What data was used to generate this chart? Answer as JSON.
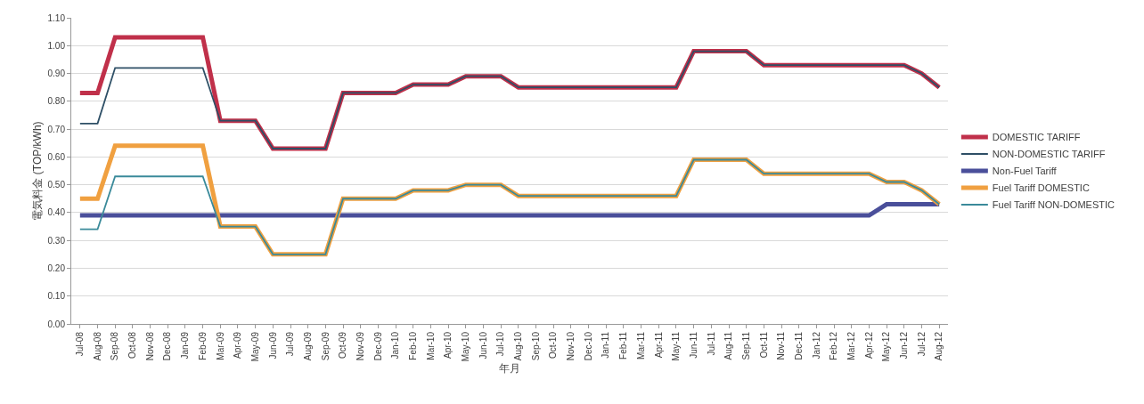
{
  "chart_data": {
    "type": "line",
    "xlabel": "年月",
    "ylabel": "電気料金 (TOP/kWh)",
    "categories": [
      "Jul-08",
      "Aug-08",
      "Sep-08",
      "Oct-08",
      "Nov-08",
      "Dec-08",
      "Jan-09",
      "Feb-09",
      "Mar-09",
      "Apr-09",
      "May-09",
      "Jun-09",
      "Jul-09",
      "Aug-09",
      "Sep-09",
      "Oct-09",
      "Nov-09",
      "Dec-09",
      "Jan-10",
      "Feb-10",
      "Mar-10",
      "Apr-10",
      "May-10",
      "Jun-10",
      "Jul-10",
      "Aug-10",
      "Sep-10",
      "Oct-10",
      "Nov-10",
      "Dec-10",
      "Jan-11",
      "Feb-11",
      "Mar-11",
      "Apr-11",
      "May-11",
      "Jun-11",
      "Jul-11",
      "Aug-11",
      "Sep-11",
      "Oct-11",
      "Nov-11",
      "Dec-11",
      "Jan-12",
      "Feb-12",
      "Mar-12",
      "Apr-12",
      "May-12",
      "Jun-12",
      "Jul-12",
      "Aug-12"
    ],
    "series": [
      {
        "name": "DOMESTIC TARIFF",
        "color": "#c0304a",
        "values": [
          0.83,
          0.83,
          1.03,
          1.03,
          1.03,
          1.03,
          1.03,
          1.03,
          0.73,
          0.73,
          0.73,
          0.63,
          0.63,
          0.63,
          0.63,
          0.83,
          0.83,
          0.83,
          0.83,
          0.86,
          0.86,
          0.86,
          0.89,
          0.89,
          0.89,
          0.85,
          0.85,
          0.85,
          0.85,
          0.85,
          0.85,
          0.85,
          0.85,
          0.85,
          0.85,
          0.98,
          0.98,
          0.98,
          0.98,
          0.93,
          0.93,
          0.93,
          0.93,
          0.93,
          0.93,
          0.93,
          0.93,
          0.93,
          0.9,
          0.85
        ]
      },
      {
        "name": "NON-DOMESTIC TARIFF",
        "color": "#2e4f66",
        "values": [
          0.72,
          0.72,
          0.92,
          0.92,
          0.92,
          0.92,
          0.92,
          0.92,
          0.73,
          0.73,
          0.73,
          0.63,
          0.63,
          0.63,
          0.63,
          0.83,
          0.83,
          0.83,
          0.83,
          0.86,
          0.86,
          0.86,
          0.89,
          0.89,
          0.89,
          0.85,
          0.85,
          0.85,
          0.85,
          0.85,
          0.85,
          0.85,
          0.85,
          0.85,
          0.85,
          0.98,
          0.98,
          0.98,
          0.98,
          0.93,
          0.93,
          0.93,
          0.93,
          0.93,
          0.93,
          0.93,
          0.93,
          0.93,
          0.9,
          0.85
        ]
      },
      {
        "name": "Non-Fuel Tariff",
        "color": "#4a4f9a",
        "values": [
          0.39,
          0.39,
          0.39,
          0.39,
          0.39,
          0.39,
          0.39,
          0.39,
          0.39,
          0.39,
          0.39,
          0.39,
          0.39,
          0.39,
          0.39,
          0.39,
          0.39,
          0.39,
          0.39,
          0.39,
          0.39,
          0.39,
          0.39,
          0.39,
          0.39,
          0.39,
          0.39,
          0.39,
          0.39,
          0.39,
          0.39,
          0.39,
          0.39,
          0.39,
          0.39,
          0.39,
          0.39,
          0.39,
          0.39,
          0.39,
          0.39,
          0.39,
          0.39,
          0.39,
          0.39,
          0.39,
          0.43,
          0.43,
          0.43,
          0.43
        ]
      },
      {
        "name": "Fuel Tariff DOMESTIC",
        "color": "#f0a040",
        "values": [
          0.45,
          0.45,
          0.64,
          0.64,
          0.64,
          0.64,
          0.64,
          0.64,
          0.35,
          0.35,
          0.35,
          0.25,
          0.25,
          0.25,
          0.25,
          0.45,
          0.45,
          0.45,
          0.45,
          0.48,
          0.48,
          0.48,
          0.5,
          0.5,
          0.5,
          0.46,
          0.46,
          0.46,
          0.46,
          0.46,
          0.46,
          0.46,
          0.46,
          0.46,
          0.46,
          0.59,
          0.59,
          0.59,
          0.59,
          0.54,
          0.54,
          0.54,
          0.54,
          0.54,
          0.54,
          0.54,
          0.51,
          0.51,
          0.48,
          0.43
        ]
      },
      {
        "name": "Fuel Tariff NON-DOMESTIC",
        "color": "#3a8a9a",
        "values": [
          0.34,
          0.34,
          0.53,
          0.53,
          0.53,
          0.53,
          0.53,
          0.53,
          0.35,
          0.35,
          0.35,
          0.25,
          0.25,
          0.25,
          0.25,
          0.45,
          0.45,
          0.45,
          0.45,
          0.48,
          0.48,
          0.48,
          0.5,
          0.5,
          0.5,
          0.46,
          0.46,
          0.46,
          0.46,
          0.46,
          0.46,
          0.46,
          0.46,
          0.46,
          0.46,
          0.59,
          0.59,
          0.59,
          0.59,
          0.54,
          0.54,
          0.54,
          0.54,
          0.54,
          0.54,
          0.54,
          0.51,
          0.51,
          0.48,
          0.43
        ]
      }
    ],
    "ylim": [
      0,
      1.1
    ],
    "yticks": [
      {
        "value": 0,
        "label": "0.00"
      },
      {
        "value": 0.1,
        "label": "0.10"
      },
      {
        "value": 0.2,
        "label": "0.20"
      },
      {
        "value": 0.3,
        "label": "0.30"
      },
      {
        "value": 0.4,
        "label": "0.40"
      },
      {
        "value": 0.5,
        "label": "0.50"
      },
      {
        "value": 0.6,
        "label": "0.60"
      },
      {
        "value": 0.7,
        "label": "0.70"
      },
      {
        "value": 0.8,
        "label": "0.80"
      },
      {
        "value": 0.9,
        "label": "0.90"
      },
      {
        "value": 1,
        "label": "1.00"
      },
      {
        "value": 1.1,
        "label": "1.10"
      }
    ],
    "grid": "y",
    "legend": "right",
    "marker": "none",
    "line_style": "solid"
  }
}
